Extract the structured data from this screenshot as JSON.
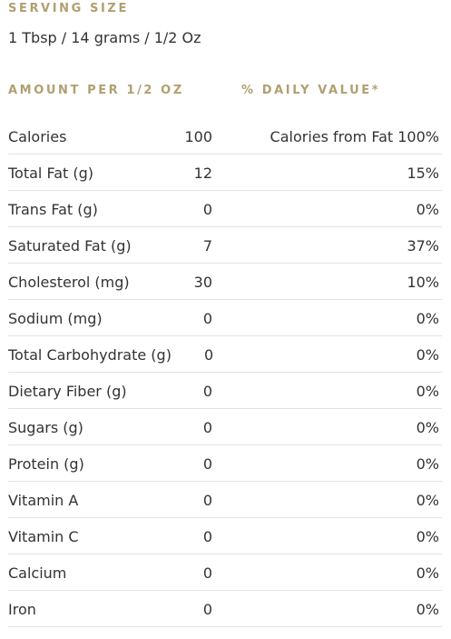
{
  "serving": {
    "label": "SERVING SIZE",
    "value": "1 Tbsp / 14 grams / 1/2 Oz"
  },
  "headers": {
    "amount": "AMOUNT PER 1/2 OZ",
    "daily_value": "% DAILY VALUE*"
  },
  "rows": [
    {
      "name": "Calories",
      "amount": "100",
      "dv": "Calories from Fat 100%"
    },
    {
      "name": "Total Fat (g)",
      "amount": "12",
      "dv": "15%"
    },
    {
      "name": "Trans Fat (g)",
      "amount": "0",
      "dv": "0%"
    },
    {
      "name": "Saturated Fat (g)",
      "amount": "7",
      "dv": "37%"
    },
    {
      "name": "Cholesterol (mg)",
      "amount": "30",
      "dv": "10%"
    },
    {
      "name": "Sodium (mg)",
      "amount": "0",
      "dv": "0%"
    },
    {
      "name": "Total Carbohydrate (g)",
      "amount": "0",
      "dv": "0%"
    },
    {
      "name": "Dietary Fiber (g)",
      "amount": "0",
      "dv": "0%"
    },
    {
      "name": "Sugars (g)",
      "amount": "0",
      "dv": "0%"
    },
    {
      "name": "Protein (g)",
      "amount": "0",
      "dv": "0%"
    },
    {
      "name": "Vitamin A",
      "amount": "0",
      "dv": "0%"
    },
    {
      "name": "Vitamin C",
      "amount": "0",
      "dv": "0%"
    },
    {
      "name": "Calcium",
      "amount": "0",
      "dv": "0%"
    },
    {
      "name": "Iron",
      "amount": "0",
      "dv": "0%"
    }
  ],
  "colors": {
    "accent": "#b0a071",
    "text": "#333333",
    "divider": "#e3e3e3"
  }
}
